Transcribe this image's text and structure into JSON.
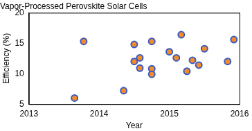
{
  "chart_data": {
    "type": "scatter",
    "title": "Vapor-Processed Perovskite Solar Cells",
    "x_label": "Year",
    "y_label": "Efficiency (%)",
    "x": [
      2013.65,
      2013.78,
      2014.35,
      2014.5,
      2014.5,
      2014.58,
      2014.58,
      2014.75,
      2014.75,
      2014.75,
      2015.0,
      2015.1,
      2015.17,
      2015.25,
      2015.33,
      2015.42,
      2015.5,
      2015.83,
      2015.92
    ],
    "values": [
      6.0,
      15.3,
      7.2,
      12.0,
      14.8,
      12.6,
      10.9,
      15.3,
      10.8,
      9.9,
      13.6,
      12.6,
      16.4,
      10.4,
      12.2,
      11.4,
      14.1,
      12.0,
      15.6
    ],
    "color": "#f28c28",
    "marker": "circle",
    "xlim": [
      2013,
      2016
    ],
    "xticks": [
      2013,
      2014,
      2015,
      2016
    ],
    "ylim": [
      5,
      20
    ],
    "yticks": [
      5,
      10,
      15,
      20
    ],
    "grid": false
  }
}
